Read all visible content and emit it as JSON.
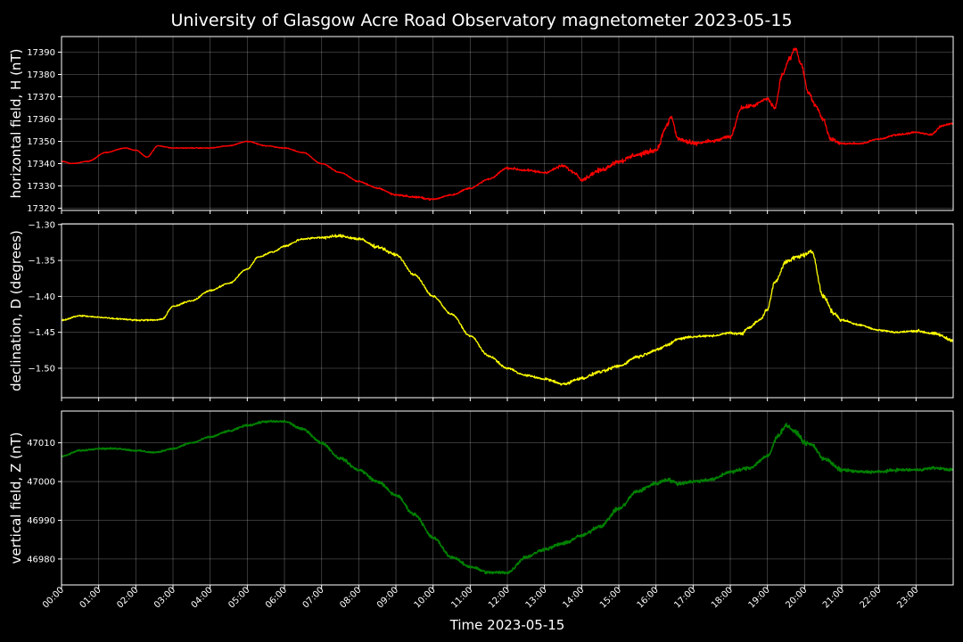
{
  "chart_data": {
    "type": "line",
    "title": "University of Glasgow Acre Road Observatory magnetometer 2023-05-15",
    "xlabel": "Time 2023-05-15",
    "x_tick_labels": [
      "00:00",
      "01:00",
      "02:00",
      "03:00",
      "04:00",
      "05:00",
      "06:00",
      "07:00",
      "08:00",
      "09:00",
      "10:00",
      "11:00",
      "12:00",
      "13:00",
      "14:00",
      "15:00",
      "16:00",
      "17:00",
      "18:00",
      "19:00",
      "20:00",
      "21:00",
      "22:00",
      "23:00"
    ],
    "xlim_hours": [
      0,
      24
    ],
    "grid": true,
    "panels": [
      {
        "ylabel": "horizontal field, H (nT)",
        "color": "#ff0000",
        "ylim": [
          17319,
          17397
        ],
        "yticks": [
          17320,
          17330,
          17340,
          17350,
          17360,
          17370,
          17380,
          17390
        ],
        "tick_labels": [
          "17320",
          "17330",
          "17340",
          "17350",
          "17360",
          "17370",
          "17380",
          "17390"
        ],
        "noise": [
          0.3,
          0.3,
          0.3,
          0.3,
          0.3,
          0.3,
          0.3,
          0.4,
          0.5,
          0.6,
          0.5,
          0.5,
          0.8,
          0.9,
          1.4,
          1.6,
          1.6,
          1.2,
          1.2,
          1.4,
          1.2,
          0.6,
          0.6,
          0.6
        ],
        "points": [
          [
            0,
            17341
          ],
          [
            0.3,
            17340
          ],
          [
            0.7,
            17341
          ],
          [
            1.2,
            17345
          ],
          [
            1.7,
            17347
          ],
          [
            2.0,
            17346
          ],
          [
            2.3,
            17343
          ],
          [
            2.6,
            17348
          ],
          [
            3.0,
            17347
          ],
          [
            3.5,
            17347
          ],
          [
            4.0,
            17347
          ],
          [
            4.5,
            17348
          ],
          [
            5.0,
            17350
          ],
          [
            5.5,
            17348
          ],
          [
            6.0,
            17347
          ],
          [
            6.5,
            17345
          ],
          [
            7.0,
            17340
          ],
          [
            7.5,
            17336
          ],
          [
            8.0,
            17332
          ],
          [
            8.5,
            17329
          ],
          [
            9.0,
            17326
          ],
          [
            9.5,
            17325
          ],
          [
            10.0,
            17324
          ],
          [
            10.5,
            17326
          ],
          [
            11.0,
            17329
          ],
          [
            11.5,
            17333
          ],
          [
            12.0,
            17338
          ],
          [
            12.5,
            17337
          ],
          [
            13.0,
            17336
          ],
          [
            13.5,
            17339
          ],
          [
            13.8,
            17336
          ],
          [
            14.0,
            17333
          ],
          [
            14.5,
            17337
          ],
          [
            15.0,
            17341
          ],
          [
            15.5,
            17344
          ],
          [
            16.0,
            17346
          ],
          [
            16.3,
            17357
          ],
          [
            16.4,
            17361
          ],
          [
            16.6,
            17351
          ],
          [
            17.0,
            17349
          ],
          [
            17.5,
            17350
          ],
          [
            18.0,
            17352
          ],
          [
            18.3,
            17365
          ],
          [
            18.6,
            17366
          ],
          [
            19.0,
            17369
          ],
          [
            19.2,
            17365
          ],
          [
            19.4,
            17380
          ],
          [
            19.6,
            17387
          ],
          [
            19.75,
            17392
          ],
          [
            19.9,
            17385
          ],
          [
            20.1,
            17372
          ],
          [
            20.3,
            17366
          ],
          [
            20.5,
            17360
          ],
          [
            20.7,
            17351
          ],
          [
            21.0,
            17349
          ],
          [
            21.5,
            17349
          ],
          [
            22.0,
            17351
          ],
          [
            22.5,
            17353
          ],
          [
            23.0,
            17354
          ],
          [
            23.4,
            17353
          ],
          [
            23.7,
            17357
          ],
          [
            24.0,
            17358
          ]
        ]
      },
      {
        "ylabel": "declination, D (degrees)",
        "color": "#ffff00",
        "ylim": [
          -1.541,
          -1.299
        ],
        "yticks": [
          -1.3,
          -1.35,
          -1.4,
          -1.45,
          -1.5
        ],
        "tick_labels": [
          "−1.30",
          "−1.35",
          "−1.40",
          "−1.45",
          "−1.50"
        ],
        "noise": [
          0.0015,
          0.0015,
          0.0015,
          0.0015,
          0.0015,
          0.0015,
          0.002,
          0.003,
          0.003,
          0.002,
          0.002,
          0.002,
          0.002,
          0.003,
          0.003,
          0.003,
          0.003,
          0.002,
          0.003,
          0.004,
          0.004,
          0.002,
          0.002,
          0.003
        ],
        "points": [
          [
            0,
            -1.433
          ],
          [
            0.5,
            -1.427
          ],
          [
            1.0,
            -1.429
          ],
          [
            1.5,
            -1.431
          ],
          [
            2.0,
            -1.433
          ],
          [
            2.5,
            -1.433
          ],
          [
            2.7,
            -1.432
          ],
          [
            3.0,
            -1.414
          ],
          [
            3.5,
            -1.406
          ],
          [
            4.0,
            -1.392
          ],
          [
            4.5,
            -1.382
          ],
          [
            5.0,
            -1.362
          ],
          [
            5.3,
            -1.345
          ],
          [
            5.7,
            -1.338
          ],
          [
            6.0,
            -1.33
          ],
          [
            6.5,
            -1.32
          ],
          [
            7.0,
            -1.318
          ],
          [
            7.5,
            -1.316
          ],
          [
            8.0,
            -1.32
          ],
          [
            8.5,
            -1.331
          ],
          [
            9.0,
            -1.342
          ],
          [
            9.5,
            -1.37
          ],
          [
            10.0,
            -1.4
          ],
          [
            10.5,
            -1.425
          ],
          [
            11.0,
            -1.455
          ],
          [
            11.5,
            -1.483
          ],
          [
            12.0,
            -1.5
          ],
          [
            12.5,
            -1.51
          ],
          [
            13.0,
            -1.515
          ],
          [
            13.5,
            -1.522
          ],
          [
            14.0,
            -1.514
          ],
          [
            14.5,
            -1.505
          ],
          [
            15.0,
            -1.497
          ],
          [
            15.5,
            -1.484
          ],
          [
            16.0,
            -1.475
          ],
          [
            16.3,
            -1.468
          ],
          [
            16.6,
            -1.459
          ],
          [
            17.0,
            -1.456
          ],
          [
            17.5,
            -1.455
          ],
          [
            18.0,
            -1.451
          ],
          [
            18.3,
            -1.452
          ],
          [
            18.5,
            -1.443
          ],
          [
            18.8,
            -1.433
          ],
          [
            19.0,
            -1.418
          ],
          [
            19.2,
            -1.38
          ],
          [
            19.5,
            -1.352
          ],
          [
            19.8,
            -1.345
          ],
          [
            20.0,
            -1.342
          ],
          [
            20.2,
            -1.338
          ],
          [
            20.5,
            -1.4
          ],
          [
            20.8,
            -1.424
          ],
          [
            21.0,
            -1.433
          ],
          [
            21.5,
            -1.44
          ],
          [
            22.0,
            -1.447
          ],
          [
            22.5,
            -1.45
          ],
          [
            23.0,
            -1.448
          ],
          [
            23.5,
            -1.452
          ],
          [
            24.0,
            -1.461
          ]
        ]
      },
      {
        "ylabel": "vertical field, Z (nT)",
        "color": "#008000",
        "ylim": [
          46973.3,
          47018.2
        ],
        "yticks": [
          46980,
          46990,
          47000,
          47010
        ],
        "tick_labels": [
          "46980",
          "46990",
          "47000",
          "47010"
        ],
        "noise": [
          0.3,
          0.3,
          0.3,
          0.3,
          0.35,
          0.4,
          0.45,
          0.55,
          0.6,
          0.6,
          0.55,
          0.55,
          0.6,
          0.65,
          0.7,
          0.7,
          0.7,
          0.6,
          0.65,
          0.8,
          0.8,
          0.55,
          0.55,
          0.5
        ],
        "points": [
          [
            0,
            47006.5
          ],
          [
            0.5,
            47008
          ],
          [
            1.0,
            47008.5
          ],
          [
            1.5,
            47008.5
          ],
          [
            2.0,
            47008
          ],
          [
            2.5,
            47007.5
          ],
          [
            3.0,
            47008.5
          ],
          [
            3.5,
            47010
          ],
          [
            4.0,
            47011.5
          ],
          [
            4.5,
            47013
          ],
          [
            5.0,
            47014.5
          ],
          [
            5.5,
            47015.5
          ],
          [
            6.0,
            47015.5
          ],
          [
            6.5,
            47013.5
          ],
          [
            7.0,
            47010
          ],
          [
            7.5,
            47006
          ],
          [
            8.0,
            47003
          ],
          [
            8.5,
            47000
          ],
          [
            9.0,
            46996.5
          ],
          [
            9.5,
            46991.5
          ],
          [
            10.0,
            46985.5
          ],
          [
            10.5,
            46980.5
          ],
          [
            11.0,
            46978
          ],
          [
            11.5,
            46976.5
          ],
          [
            12.0,
            46976.5
          ],
          [
            12.5,
            46980.5
          ],
          [
            13.0,
            46982.5
          ],
          [
            13.5,
            46984
          ],
          [
            14.0,
            46986
          ],
          [
            14.5,
            46988.5
          ],
          [
            15.0,
            46993
          ],
          [
            15.5,
            46997.5
          ],
          [
            16.0,
            46999.5
          ],
          [
            16.3,
            47000.5
          ],
          [
            16.6,
            46999.5
          ],
          [
            17.0,
            47000
          ],
          [
            17.5,
            47000.5
          ],
          [
            18.0,
            47002.5
          ],
          [
            18.5,
            47003.5
          ],
          [
            19.0,
            47006.5
          ],
          [
            19.3,
            47012
          ],
          [
            19.5,
            47014.5
          ],
          [
            19.8,
            47012.5
          ],
          [
            20.0,
            47010
          ],
          [
            20.2,
            47009.5
          ],
          [
            20.5,
            47006
          ],
          [
            21.0,
            47003
          ],
          [
            21.5,
            47002.5
          ],
          [
            22.0,
            47002.5
          ],
          [
            22.5,
            47003
          ],
          [
            23.0,
            47003
          ],
          [
            23.5,
            47003.5
          ],
          [
            24.0,
            47003
          ]
        ]
      }
    ]
  }
}
